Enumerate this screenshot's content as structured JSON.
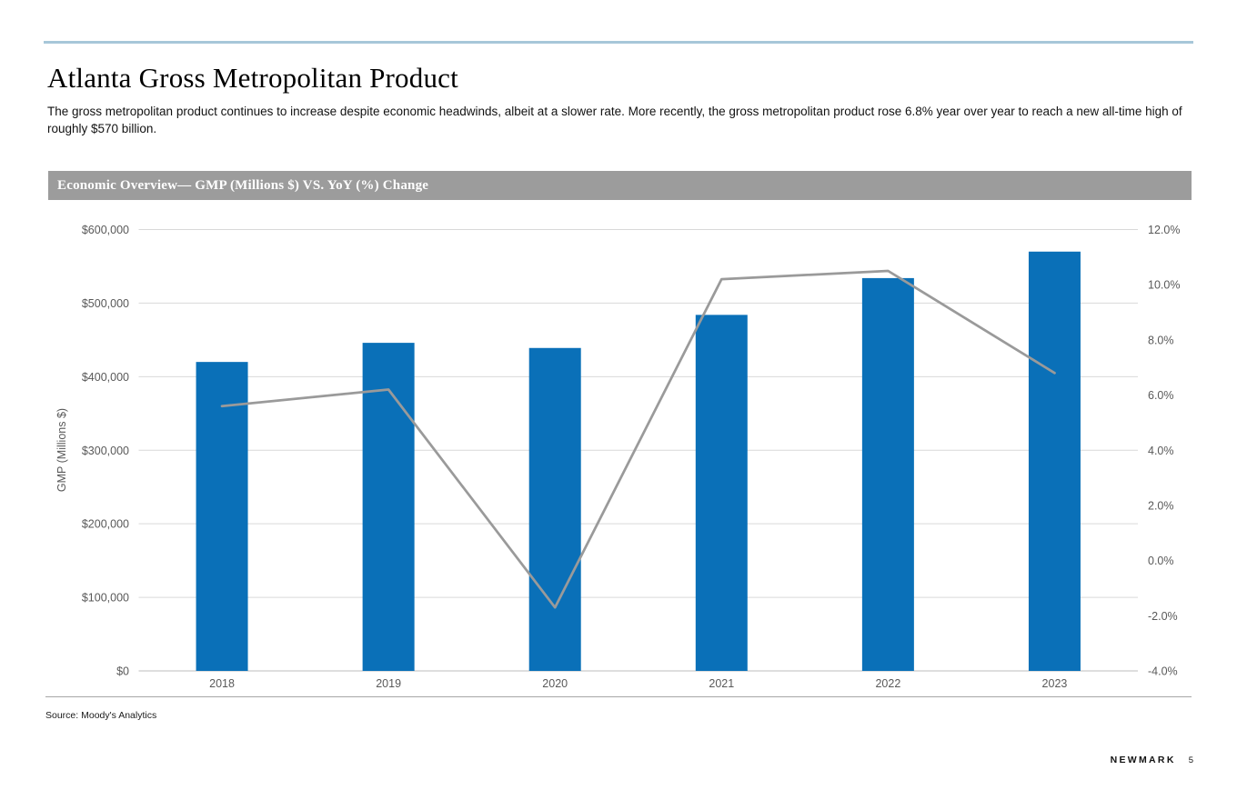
{
  "page": {
    "title": "Atlanta Gross Metropolitan Product",
    "subtitle": "The gross metropolitan product continues to increase despite economic headwinds, albeit at a slower rate. More recently, the gross metropolitan product rose 6.8% year over year to reach a new all-time high of roughly $570 billion.",
    "source": "Source: Moody's Analytics",
    "brand": "NEWMARK",
    "page_number": "5"
  },
  "chart_header": {
    "label": "Economic Overview— GMP (Millions $) VS. YoY (%) Change"
  },
  "colors": {
    "top_rule": "#a7c7d9",
    "header_bar_bg": "#9c9c9c",
    "bar": "#0a70b8",
    "line": "#9a9a9a",
    "gridline": "#d9d9d9",
    "axis_line": "#bdbdbd",
    "axis_text": "#595959"
  },
  "chart_data": {
    "type": "bar",
    "subtype": "bar+line combo",
    "categories": [
      "2018",
      "2019",
      "2020",
      "2021",
      "2022",
      "2023"
    ],
    "series": [
      {
        "name": "GMP (Millions $)",
        "type": "bar",
        "axis": "left",
        "values": [
          420000,
          446000,
          439000,
          484000,
          534000,
          570000
        ]
      },
      {
        "name": "YoY (%) Change",
        "type": "line",
        "axis": "right",
        "values": [
          5.6,
          6.2,
          -1.7,
          10.2,
          10.5,
          6.8
        ]
      }
    ],
    "left_axis": {
      "title": "GMP (Millions $)",
      "min": 0,
      "max": 600000,
      "step": 100000,
      "ticks": [
        "$600,000",
        "$500,000",
        "$400,000",
        "$300,000",
        "$200,000",
        "$100,000",
        "$0"
      ]
    },
    "right_axis": {
      "title": "",
      "min": -4,
      "max": 12,
      "step": 2,
      "ticks": [
        "12.0%",
        "10.0%",
        "8.0%",
        "6.0%",
        "4.0%",
        "2.0%",
        "0.0%",
        "-2.0%",
        "-4.0%"
      ]
    },
    "grid": "horizontal gridlines at left-axis ticks",
    "legend": "none"
  }
}
